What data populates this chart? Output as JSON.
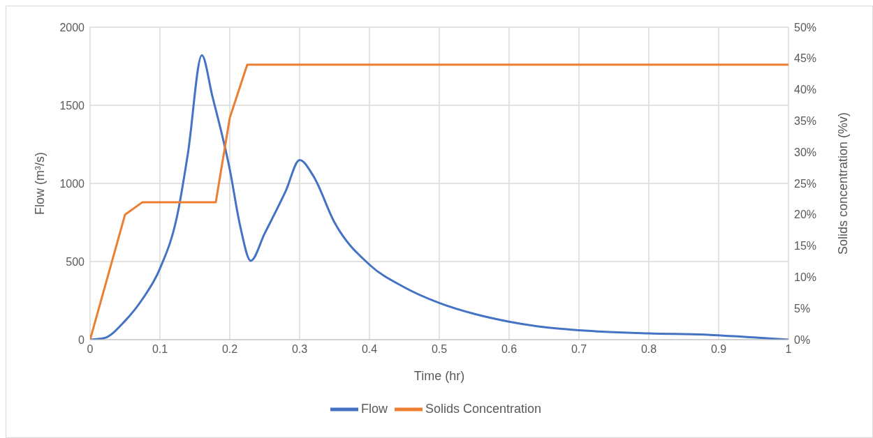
{
  "chart_data": {
    "type": "line",
    "xlabel": "Time (hr)",
    "ylabel": "Flow (m³/s)",
    "y2label": "Solids concentration (%v)",
    "xlim": [
      0,
      1
    ],
    "xticks": [
      0,
      0.1,
      0.2,
      0.3,
      0.4,
      0.5,
      0.6,
      0.7,
      0.8,
      0.9,
      1
    ],
    "ylim": [
      0,
      2000
    ],
    "yticks": [
      0,
      500,
      1000,
      1500,
      2000
    ],
    "y2lim": [
      0,
      50
    ],
    "y2ticks": [
      {
        "value": 0,
        "label": "0%"
      },
      {
        "value": 5,
        "label": "5%"
      },
      {
        "value": 10,
        "label": "10%"
      },
      {
        "value": 15,
        "label": "15%"
      },
      {
        "value": 20,
        "label": "20%"
      },
      {
        "value": 25,
        "label": "25%"
      },
      {
        "value": 30,
        "label": "30%"
      },
      {
        "value": 35,
        "label": "35%"
      },
      {
        "value": 40,
        "label": "40%"
      },
      {
        "value": 45,
        "label": "45%"
      },
      {
        "value": 50,
        "label": "50%"
      }
    ],
    "grid": true,
    "legend": "bottom",
    "marker": "none",
    "line_style": "solid",
    "series": [
      {
        "name": "Flow",
        "color": "#4472c4",
        "x": [
          0,
          0.02,
          0.05,
          0.075,
          0.1,
          0.125,
          0.14,
          0.16,
          0.175,
          0.2,
          0.215,
          0.23,
          0.25,
          0.28,
          0.3,
          0.32,
          0.35,
          0.4,
          0.45,
          0.5,
          0.55,
          0.6,
          0.65,
          0.7,
          0.8,
          0.88,
          0.95,
          1
        ],
        "values": [
          0,
          10,
          120,
          260,
          455,
          800,
          1190,
          1820,
          1560,
          1090,
          725,
          505,
          680,
          950,
          1150,
          1045,
          750,
          480,
          335,
          235,
          165,
          115,
          80,
          60,
          40,
          32,
          15,
          0
        ]
      },
      {
        "name": "Solids Concentration",
        "color": "#ed7d31",
        "axis": "y2",
        "x": [
          0,
          0.05,
          0.075,
          0.18,
          0.2,
          0.225,
          1
        ],
        "values": [
          0,
          20,
          22,
          22,
          35.5,
          44,
          44
        ]
      }
    ]
  }
}
